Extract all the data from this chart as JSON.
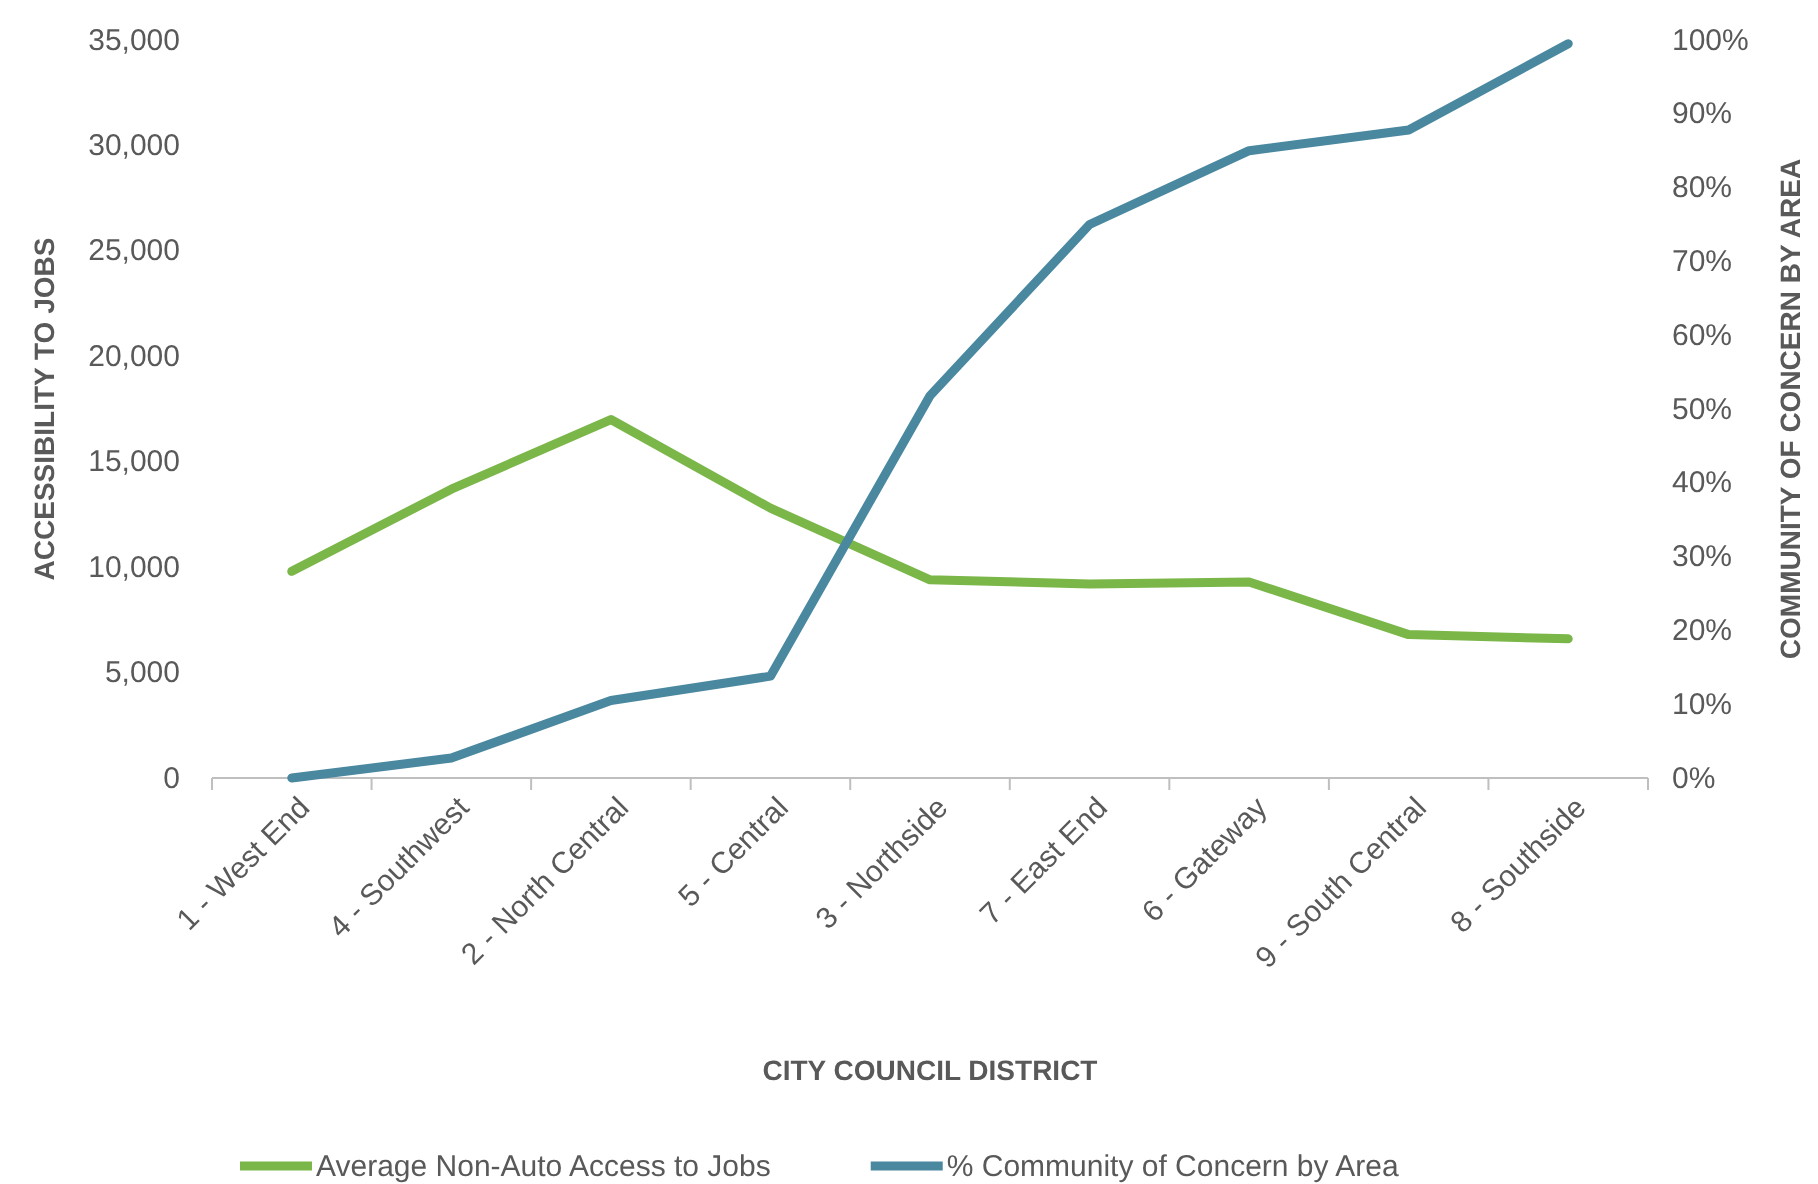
{
  "chart_data": {
    "type": "line",
    "xlabel": "CITY COUNCIL DISTRICT",
    "ylabel": "ACCESSIBILITY TO JOBS",
    "y2label": "COMMUNITY OF CONCERN BY AREA",
    "categories": [
      "1 - West End",
      "4 - Southwest",
      "2 - North Central",
      "5 - Central",
      "3 - Northside",
      "7 - East End",
      "6 - Gateway",
      "9 - South Central",
      "8 - Southside"
    ],
    "series": [
      {
        "name": "Average Non-Auto Access to Jobs",
        "color": "#7ab648",
        "values": [
          9800,
          13700,
          17000,
          12800,
          9400,
          9200,
          9300,
          6800,
          6600
        ]
      },
      {
        "name": "% Community of Concern by Area",
        "color": "#4a88a0",
        "axis": "y2",
        "values": [
          0,
          2.7,
          10.5,
          13.8,
          51.8,
          75,
          85,
          87.8,
          99.5
        ]
      }
    ],
    "ylim": [
      0,
      35000
    ],
    "yticks": [
      {
        "value": 0,
        "label": "0"
      },
      {
        "value": 5000,
        "label": "5,000"
      },
      {
        "value": 10000,
        "label": "10,000"
      },
      {
        "value": 15000,
        "label": "15,000"
      },
      {
        "value": 20000,
        "label": "20,000"
      },
      {
        "value": 25000,
        "label": "25,000"
      },
      {
        "value": 30000,
        "label": "30,000"
      },
      {
        "value": 35000,
        "label": "35,000"
      }
    ],
    "y2lim": [
      0,
      100
    ],
    "y2ticks": [
      {
        "value": 0,
        "label": "0%"
      },
      {
        "value": 10,
        "label": "10%"
      },
      {
        "value": 20,
        "label": "20%"
      },
      {
        "value": 30,
        "label": "30%"
      },
      {
        "value": 40,
        "label": "40%"
      },
      {
        "value": 50,
        "label": "50%"
      },
      {
        "value": 60,
        "label": "60%"
      },
      {
        "value": 70,
        "label": "70%"
      },
      {
        "value": 80,
        "label": "80%"
      },
      {
        "value": 90,
        "label": "90%"
      },
      {
        "value": 100,
        "label": "100%"
      }
    ],
    "grid": false,
    "legend": "bottom",
    "marker": "none",
    "line_style": "solid"
  }
}
